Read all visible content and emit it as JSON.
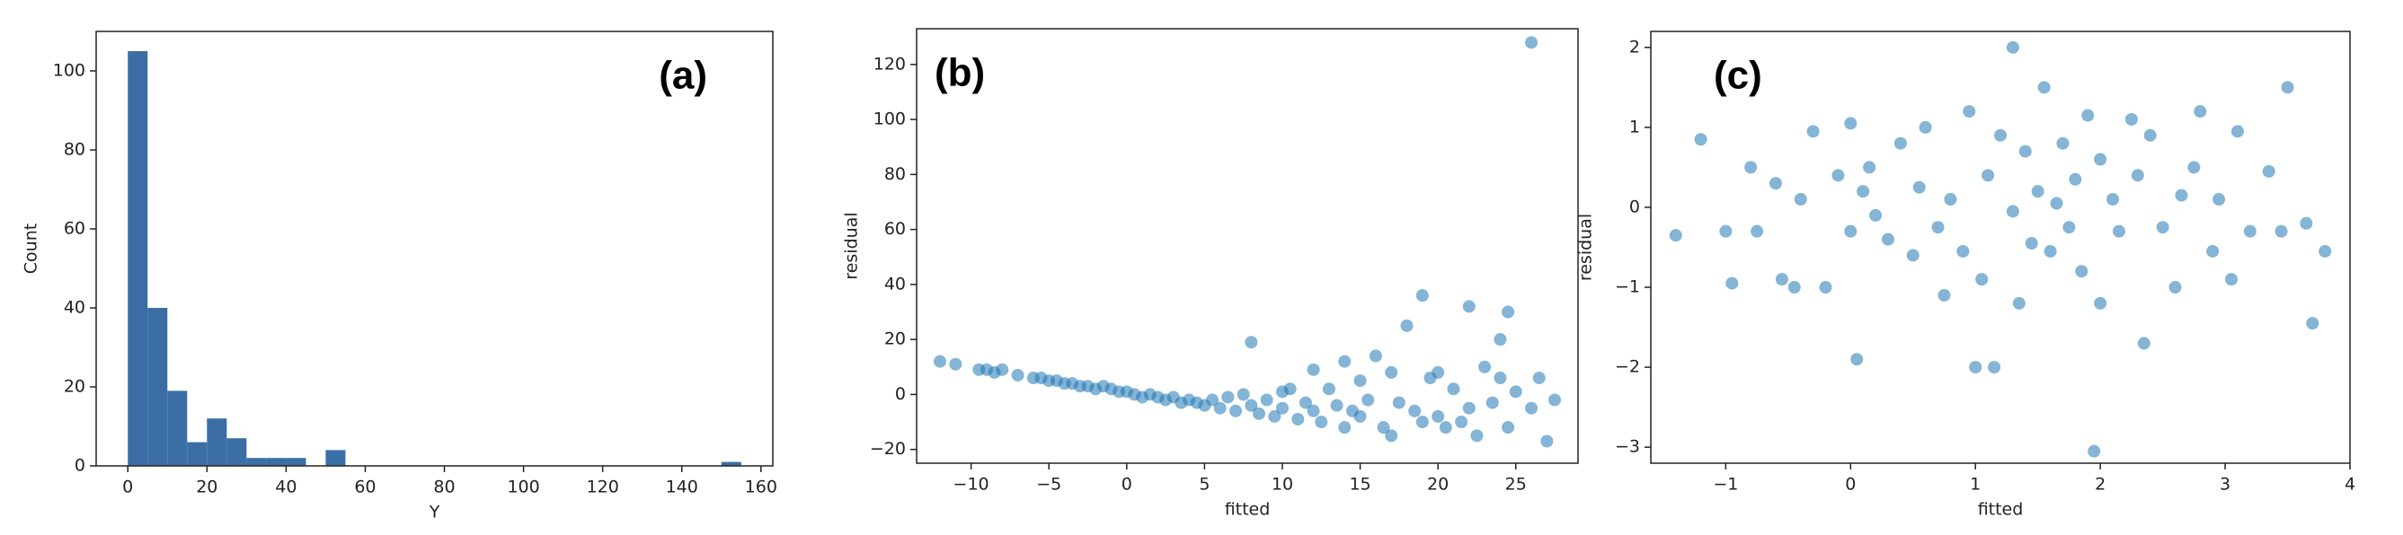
{
  "chart_data": [
    {
      "type": "histogram",
      "annotation": "(a)",
      "x_label": "Y",
      "y_label": "Count",
      "color": "#3a6ea5",
      "bins": [
        0,
        5,
        10,
        15,
        20,
        25,
        30,
        35,
        40,
        45,
        50,
        55,
        60,
        65,
        70,
        75,
        80,
        85,
        90,
        95,
        100,
        105,
        110,
        115,
        120,
        125,
        130,
        135,
        140,
        145,
        150,
        155
      ],
      "values": [
        105,
        40,
        19,
        6,
        12,
        7,
        2,
        2,
        2,
        0,
        4,
        0,
        0,
        0,
        0,
        0,
        0,
        0,
        0,
        0,
        0,
        0,
        0,
        0,
        0,
        0,
        0,
        0,
        0,
        0,
        1
      ],
      "xlim": [
        -8,
        163
      ],
      "xticks": [
        0,
        20,
        40,
        60,
        80,
        100,
        120,
        140,
        160
      ],
      "ylim": [
        0,
        110
      ],
      "yticks": [
        0,
        20,
        40,
        60,
        80,
        100
      ]
    },
    {
      "type": "scatter",
      "annotation": "(b)",
      "x_label": "fitted",
      "y_label": "residual",
      "color": "#1f77b4",
      "x": [
        -12,
        -11,
        -9.5,
        -9,
        -8.5,
        -8,
        -7,
        -6,
        -5.5,
        -5,
        -4.5,
        -4,
        -3.5,
        -3,
        -2.5,
        -2,
        -1.5,
        -1,
        -0.5,
        0,
        0.5,
        1,
        1.5,
        2,
        2.5,
        3,
        3.5,
        4,
        4.5,
        5,
        5.5,
        6,
        6.5,
        7,
        7.5,
        8,
        8,
        8.5,
        9,
        9.5,
        10,
        10,
        10.5,
        11,
        11.5,
        12,
        12,
        12.5,
        13,
        13.5,
        14,
        14,
        14.5,
        15,
        15,
        15.5,
        16,
        16.5,
        17,
        17,
        17.5,
        18,
        18.5,
        19,
        19,
        19.5,
        20,
        20,
        20.5,
        21,
        21.5,
        22,
        22,
        22.5,
        23,
        23.5,
        24,
        24,
        24.5,
        24.5,
        25,
        26,
        26,
        26.5,
        27,
        27.5
      ],
      "values": [
        12,
        11,
        9,
        9,
        8,
        9,
        7,
        6,
        6,
        5,
        5,
        4,
        4,
        3,
        3,
        2,
        3,
        2,
        1,
        1,
        0,
        -1,
        0,
        -1,
        -2,
        -1,
        -3,
        -2,
        -3,
        -4,
        -2,
        -5,
        -1,
        -6,
        0,
        19,
        -4,
        -7,
        -2,
        -8,
        1,
        -5,
        2,
        -9,
        -3,
        9,
        -6,
        -10,
        2,
        -4,
        12,
        -12,
        -6,
        5,
        -8,
        -2,
        14,
        -12,
        -15,
        8,
        -3,
        25,
        -6,
        36,
        -10,
        6,
        8,
        -8,
        -12,
        2,
        -10,
        32,
        -5,
        -15,
        10,
        -3,
        20,
        6,
        30,
        -12,
        1,
        128,
        -5,
        6,
        -17,
        -2
      ],
      "xlim": [
        -13.5,
        29
      ],
      "xticks": [
        {
          "value": -10,
          "label": "−10"
        },
        {
          "value": -5,
          "label": "−5"
        },
        0,
        5,
        10,
        15,
        20,
        25
      ],
      "ylim": [
        -25,
        133
      ],
      "yticks": [
        {
          "value": -20,
          "label": "−20"
        },
        0,
        20,
        40,
        60,
        80,
        100,
        120
      ]
    },
    {
      "type": "scatter",
      "annotation": "(c)",
      "x_label": "fitted",
      "y_label": "residual",
      "color": "#1f77b4",
      "x": [
        -1.4,
        -1.2,
        -1,
        -0.95,
        -0.8,
        -0.75,
        -0.6,
        -0.55,
        -0.45,
        -0.4,
        -0.3,
        -0.2,
        -0.1,
        0,
        0,
        0.05,
        0.1,
        0.15,
        0.2,
        0.3,
        0.4,
        0.5,
        0.55,
        0.6,
        0.7,
        0.75,
        0.8,
        0.9,
        0.95,
        1,
        1.05,
        1.1,
        1.15,
        1.2,
        1.3,
        1.3,
        1.35,
        1.4,
        1.45,
        1.5,
        1.55,
        1.6,
        1.65,
        1.7,
        1.75,
        1.8,
        1.85,
        1.9,
        1.95,
        2,
        2,
        2.1,
        2.15,
        2.25,
        2.3,
        2.35,
        2.4,
        2.5,
        2.6,
        2.65,
        2.75,
        2.8,
        2.9,
        2.95,
        3.05,
        3.1,
        3.2,
        3.35,
        3.45,
        3.5,
        3.7,
        3.65,
        3.8
      ],
      "values": [
        -0.35,
        0.85,
        -0.3,
        -0.95,
        0.5,
        -0.3,
        0.3,
        -0.9,
        -1,
        0.1,
        0.95,
        -1,
        0.4,
        1.05,
        -0.3,
        -1.9,
        0.2,
        0.5,
        -0.1,
        -0.4,
        0.8,
        -0.6,
        0.25,
        1,
        -0.25,
        -1.1,
        0.1,
        -0.55,
        1.2,
        -2,
        -0.9,
        0.4,
        -2,
        0.9,
        -0.05,
        2,
        -1.2,
        0.7,
        -0.45,
        0.2,
        1.5,
        -0.55,
        0.05,
        0.8,
        -0.25,
        0.35,
        -0.8,
        1.15,
        -3.05,
        0.6,
        -1.2,
        0.1,
        -0.3,
        1.1,
        0.4,
        -1.7,
        0.9,
        -0.25,
        -1,
        0.15,
        0.5,
        1.2,
        -0.55,
        0.1,
        -0.9,
        0.95,
        -0.3,
        0.45,
        -0.3,
        1.5,
        -1.45,
        -0.2,
        -0.55
      ],
      "xlim": [
        -1.6,
        4.0
      ],
      "xticks": [
        {
          "value": -1,
          "label": "−1"
        },
        0,
        1,
        2,
        3,
        4
      ],
      "ylim": [
        -3.2,
        2.2
      ],
      "yticks": [
        {
          "value": -3,
          "label": "−3"
        },
        {
          "value": -2,
          "label": "−2"
        },
        {
          "value": -1,
          "label": "−1"
        },
        0,
        1,
        2
      ]
    }
  ]
}
